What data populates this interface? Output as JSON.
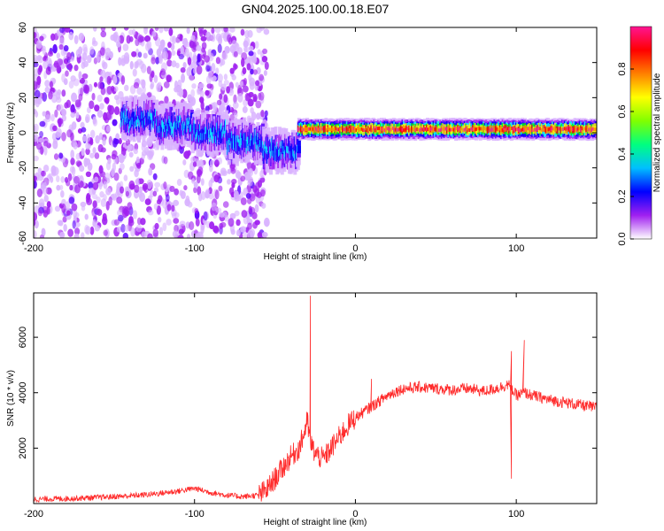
{
  "figure": {
    "title": "GN04.2025.100.00.18.E07"
  },
  "chart_data": [
    {
      "type": "heatmap",
      "title": "GN04.2025.100.00.18.E07",
      "xlabel": "Height of straight line (km)",
      "ylabel": "Frequency (Hz)",
      "xlim": [
        -200,
        150
      ],
      "ylim": [
        -60,
        60
      ],
      "xticks": [
        -200,
        -100,
        0,
        100
      ],
      "xtick_labels": [
        "-200",
        "-100",
        "0",
        "100"
      ],
      "yticks": [
        -60,
        -40,
        -20,
        0,
        20,
        40,
        60
      ],
      "ytick_labels": [
        "-60",
        "-40",
        "-20",
        "0",
        "20",
        "40",
        "60"
      ],
      "colorbar": {
        "label": "Normalized spectral amplitude",
        "range": [
          0,
          1
        ],
        "ticks": [
          0.0,
          0.2,
          0.4,
          0.6,
          0.8
        ],
        "tick_labels": [
          "0.0",
          "0.2",
          "0.4",
          "0.6",
          "0.8"
        ],
        "colormap": [
          "#ffffff",
          "#d9b3ff",
          "#a020f0",
          "#5a00ff",
          "#0000ff",
          "#00ffff",
          "#00ff00",
          "#ffff00",
          "#ff8c00",
          "#ff0000",
          "#ff1493"
        ]
      },
      "features": [
        {
          "kind": "noise",
          "x_range": [
            -200,
            -55
          ],
          "y_range": [
            -60,
            60
          ],
          "amplitude": 0.15
        },
        {
          "kind": "band",
          "x_range": [
            -145,
            -35
          ],
          "center_hz": [
            8,
            4,
            0,
            -5,
            -10
          ],
          "amplitude": 0.3
        },
        {
          "kind": "band",
          "x_range": [
            -35,
            150
          ],
          "center_hz": 2,
          "amplitude": 0.6
        }
      ],
      "grid": false
    },
    {
      "type": "line",
      "xlabel": "Height of straight line (km)",
      "ylabel": "SNR (10 * v/v)",
      "xlim": [
        -200,
        150
      ],
      "ylim": [
        0,
        7600
      ],
      "xticks": [
        -200,
        -100,
        0,
        100
      ],
      "xtick_labels": [
        "-200",
        "-100",
        "0",
        "100"
      ],
      "yticks": [
        2000,
        4000,
        6000
      ],
      "ytick_labels": [
        "2000",
        "4000",
        "6000"
      ],
      "grid": false,
      "series": [
        {
          "color": "#ff2a2a",
          "x": [
            -200,
            -190,
            -180,
            -170,
            -160,
            -150,
            -140,
            -130,
            -120,
            -110,
            -100,
            -90,
            -80,
            -70,
            -60,
            -55,
            -50,
            -45,
            -40,
            -35,
            -32,
            -30,
            -28,
            -25,
            -20,
            -15,
            -10,
            -5,
            0,
            5,
            10,
            15,
            20,
            25,
            30,
            40,
            50,
            60,
            70,
            80,
            90,
            95,
            100,
            105,
            110,
            120,
            130,
            140,
            150
          ],
          "values": [
            150,
            170,
            180,
            200,
            220,
            250,
            280,
            320,
            380,
            450,
            550,
            400,
            300,
            250,
            300,
            500,
            900,
            1300,
            1700,
            2000,
            2500,
            3000,
            2200,
            1800,
            1600,
            2000,
            2400,
            2800,
            3100,
            3300,
            3500,
            3700,
            3900,
            4050,
            4150,
            4200,
            4150,
            4100,
            4150,
            4050,
            4200,
            4300,
            3900,
            4000,
            3900,
            3750,
            3650,
            3550,
            3450
          ],
          "spikes": [
            {
              "x": -28,
              "value": 7500
            },
            {
              "x": 10,
              "value": 4500
            },
            {
              "x": 97,
              "value": 5500
            },
            {
              "x": 105,
              "value": 5900
            },
            {
              "x": 97,
              "value": 900
            }
          ],
          "noise": 350
        }
      ]
    }
  ]
}
